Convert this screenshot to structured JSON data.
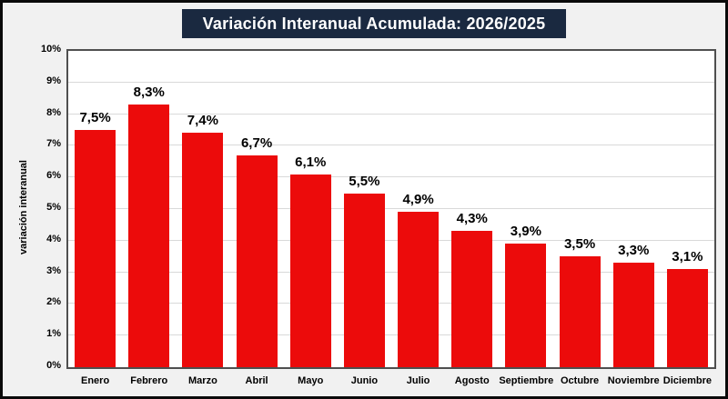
{
  "title": {
    "text": "Variación Interanual Acumulada: 2026/2025",
    "background": "#1a2940",
    "text_color": "#ffffff"
  },
  "colors": {
    "bar": "#ec0b0b",
    "outer_background": "#f1f1f1",
    "plot_background": "#ffffff",
    "plot_border": "#4f4f4f",
    "gridline": "#d9d9d9",
    "frame_border": "#0a0a0a"
  },
  "chart_data": {
    "type": "bar",
    "title": "Variación Interanual Acumulada: 2026/2025",
    "categories": [
      "Enero",
      "Febrero",
      "Marzo",
      "Abril",
      "Mayo",
      "Junio",
      "Julio",
      "Agosto",
      "Septiembre",
      "Octubre",
      "Noviembre",
      "Diciembre"
    ],
    "values": [
      7.5,
      8.3,
      7.4,
      6.7,
      6.1,
      5.5,
      4.9,
      4.3,
      3.9,
      3.5,
      3.3,
      3.1
    ],
    "value_labels": [
      "7,5%",
      "8,3%",
      "7,4%",
      "6,7%",
      "6,1%",
      "5,5%",
      "4,9%",
      "4,3%",
      "3,9%",
      "3,5%",
      "3,3%",
      "3,1%"
    ],
    "xlabel": "",
    "ylabel": "variación interanual",
    "ylim": [
      0,
      10
    ],
    "ytick_step": 1,
    "ytick_labels": [
      "0%",
      "1%",
      "2%",
      "3%",
      "4%",
      "5%",
      "6%",
      "7%",
      "8%",
      "9%",
      "10%"
    ],
    "grid": true,
    "legend_position": "none",
    "bar_color": "#ec0b0b"
  }
}
